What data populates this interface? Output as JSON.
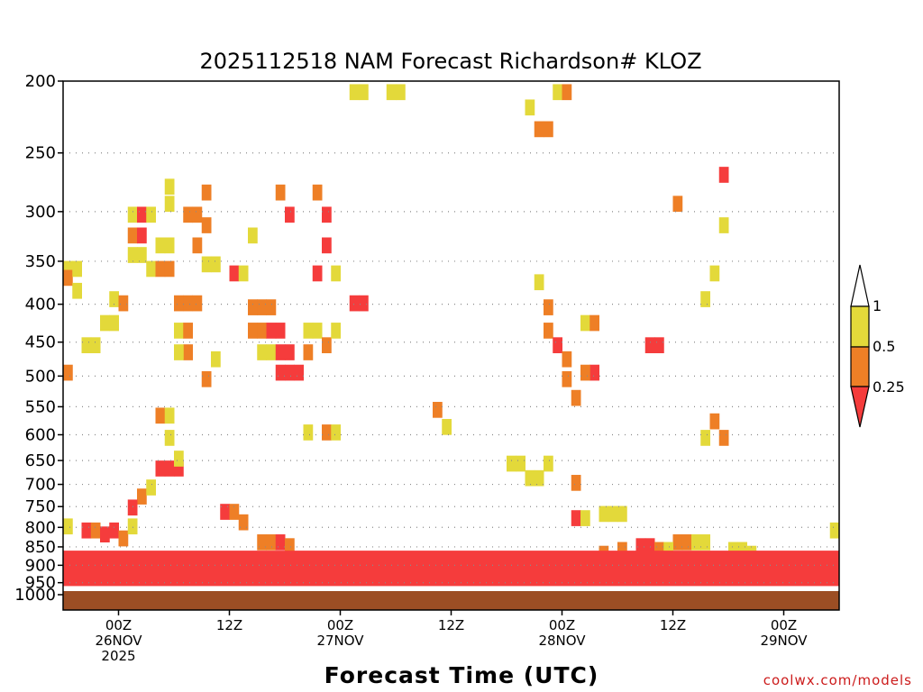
{
  "chart_data": {
    "type": "heatmap",
    "title": "2025112518 NAM Forecast Richardson# KLOZ",
    "xlabel": "Forecast Time (UTC)",
    "ylabel": "",
    "y_axis": {
      "unit": "hPa",
      "range": [
        1000,
        200
      ],
      "ticks": [
        200,
        250,
        300,
        350,
        400,
        450,
        500,
        550,
        600,
        650,
        700,
        750,
        800,
        850,
        900,
        950,
        1000
      ]
    },
    "x_axis": {
      "unit": "hours since 2025-11-25 18Z",
      "range": [
        0,
        84
      ],
      "ticks": [
        {
          "hour": 6,
          "lines": [
            "00Z",
            "26NOV",
            "2025"
          ]
        },
        {
          "hour": 18,
          "lines": [
            "12Z"
          ]
        },
        {
          "hour": 30,
          "lines": [
            "00Z",
            "27NOV"
          ]
        },
        {
          "hour": 42,
          "lines": [
            "12Z"
          ]
        },
        {
          "hour": 54,
          "lines": [
            "00Z",
            "28NOV"
          ]
        },
        {
          "hour": 66,
          "lines": [
            "12Z"
          ]
        },
        {
          "hour": 78,
          "lines": [
            "00Z",
            "29NOV"
          ]
        }
      ]
    },
    "gridlines": "horizontal dotted at pressure ticks",
    "legend": {
      "position": "right",
      "categories": [
        {
          "label": "1",
          "range": "> 1",
          "color": "#ffffff"
        },
        {
          "label": "0.5",
          "range": "0.5 – 1",
          "color": "#e3d93a"
        },
        {
          "label": "0.25",
          "range": "0.25 – 0.5",
          "color": "#ee7f26"
        },
        {
          "label": "",
          "range": "< 0.25",
          "color": "#f53c3c"
        }
      ]
    },
    "surface_color": "#9c4e24",
    "cells": [
      {
        "t": 0,
        "p": 355,
        "c": "yellow"
      },
      {
        "t": 0,
        "p": 365,
        "c": "orange"
      },
      {
        "t": 0,
        "p": 490,
        "c": "orange"
      },
      {
        "t": 1,
        "p": 355,
        "c": "yellow"
      },
      {
        "t": 1,
        "p": 380,
        "c": "yellow"
      },
      {
        "t": 2,
        "p": 450,
        "c": "yellow"
      },
      {
        "t": 3,
        "p": 450,
        "c": "yellow"
      },
      {
        "t": 4,
        "p": 420,
        "c": "yellow"
      },
      {
        "t": 5,
        "p": 420,
        "c": "yellow"
      },
      {
        "t": 5,
        "p": 390,
        "c": "yellow"
      },
      {
        "t": 6,
        "p": 395,
        "c": "orange"
      },
      {
        "t": 7,
        "p": 300,
        "c": "yellow"
      },
      {
        "t": 7,
        "p": 320,
        "c": "orange"
      },
      {
        "t": 8,
        "p": 300,
        "c": "red"
      },
      {
        "t": 8,
        "p": 320,
        "c": "red"
      },
      {
        "t": 7,
        "p": 340,
        "c": "yellow"
      },
      {
        "t": 8,
        "p": 340,
        "c": "yellow"
      },
      {
        "t": 9,
        "p": 300,
        "c": "yellow"
      },
      {
        "t": 9,
        "p": 355,
        "c": "yellow"
      },
      {
        "t": 10,
        "p": 355,
        "c": "orange"
      },
      {
        "t": 11,
        "p": 355,
        "c": "orange"
      },
      {
        "t": 10,
        "p": 330,
        "c": "yellow"
      },
      {
        "t": 11,
        "p": 330,
        "c": "yellow"
      },
      {
        "t": 11,
        "p": 275,
        "c": "yellow"
      },
      {
        "t": 11,
        "p": 290,
        "c": "yellow"
      },
      {
        "t": 12,
        "p": 395,
        "c": "orange"
      },
      {
        "t": 13,
        "p": 395,
        "c": "orange"
      },
      {
        "t": 14,
        "p": 395,
        "c": "orange"
      },
      {
        "t": 12,
        "p": 430,
        "c": "yellow"
      },
      {
        "t": 13,
        "p": 430,
        "c": "orange"
      },
      {
        "t": 13,
        "p": 460,
        "c": "orange"
      },
      {
        "t": 12,
        "p": 460,
        "c": "yellow"
      },
      {
        "t": 13,
        "p": 300,
        "c": "orange"
      },
      {
        "t": 14,
        "p": 300,
        "c": "orange"
      },
      {
        "t": 15,
        "p": 280,
        "c": "orange"
      },
      {
        "t": 15,
        "p": 310,
        "c": "orange"
      },
      {
        "t": 14,
        "p": 330,
        "c": "orange"
      },
      {
        "t": 15,
        "p": 350,
        "c": "yellow"
      },
      {
        "t": 16,
        "p": 350,
        "c": "yellow"
      },
      {
        "t": 16,
        "p": 470,
        "c": "yellow"
      },
      {
        "t": 15,
        "p": 500,
        "c": "orange"
      },
      {
        "t": 18,
        "p": 360,
        "c": "red"
      },
      {
        "t": 19,
        "p": 360,
        "c": "yellow"
      },
      {
        "t": 20,
        "p": 320,
        "c": "yellow"
      },
      {
        "t": 20,
        "p": 400,
        "c": "orange"
      },
      {
        "t": 21,
        "p": 400,
        "c": "orange"
      },
      {
        "t": 22,
        "p": 400,
        "c": "orange"
      },
      {
        "t": 20,
        "p": 430,
        "c": "orange"
      },
      {
        "t": 21,
        "p": 430,
        "c": "orange"
      },
      {
        "t": 22,
        "p": 430,
        "c": "red"
      },
      {
        "t": 23,
        "p": 430,
        "c": "red"
      },
      {
        "t": 21,
        "p": 460,
        "c": "yellow"
      },
      {
        "t": 22,
        "p": 460,
        "c": "yellow"
      },
      {
        "t": 23,
        "p": 460,
        "c": "red"
      },
      {
        "t": 24,
        "p": 460,
        "c": "red"
      },
      {
        "t": 23,
        "p": 490,
        "c": "red"
      },
      {
        "t": 24,
        "p": 490,
        "c": "red"
      },
      {
        "t": 25,
        "p": 490,
        "c": "red"
      },
      {
        "t": 26,
        "p": 430,
        "c": "yellow"
      },
      {
        "t": 26,
        "p": 460,
        "c": "orange"
      },
      {
        "t": 23,
        "p": 280,
        "c": "orange"
      },
      {
        "t": 24,
        "p": 300,
        "c": "red"
      },
      {
        "t": 27,
        "p": 280,
        "c": "orange"
      },
      {
        "t": 28,
        "p": 300,
        "c": "red"
      },
      {
        "t": 28,
        "p": 330,
        "c": "red"
      },
      {
        "t": 27,
        "p": 360,
        "c": "red"
      },
      {
        "t": 29,
        "p": 360,
        "c": "yellow"
      },
      {
        "t": 27,
        "p": 430,
        "c": "yellow"
      },
      {
        "t": 28,
        "p": 450,
        "c": "orange"
      },
      {
        "t": 29,
        "p": 430,
        "c": "yellow"
      },
      {
        "t": 31,
        "p": 395,
        "c": "red"
      },
      {
        "t": 32,
        "p": 395,
        "c": "red"
      },
      {
        "t": 31,
        "p": 205,
        "c": "yellow"
      },
      {
        "t": 32,
        "p": 205,
        "c": "yellow"
      },
      {
        "t": 35,
        "p": 205,
        "c": "yellow"
      },
      {
        "t": 36,
        "p": 205,
        "c": "yellow"
      },
      {
        "t": 50,
        "p": 215,
        "c": "yellow"
      },
      {
        "t": 51,
        "p": 230,
        "c": "orange"
      },
      {
        "t": 52,
        "p": 230,
        "c": "orange"
      },
      {
        "t": 53,
        "p": 205,
        "c": "yellow"
      },
      {
        "t": 54,
        "p": 205,
        "c": "orange"
      },
      {
        "t": 51,
        "p": 370,
        "c": "yellow"
      },
      {
        "t": 52,
        "p": 400,
        "c": "orange"
      },
      {
        "t": 52,
        "p": 430,
        "c": "orange"
      },
      {
        "t": 53,
        "p": 450,
        "c": "red"
      },
      {
        "t": 54,
        "p": 470,
        "c": "orange"
      },
      {
        "t": 54,
        "p": 500,
        "c": "orange"
      },
      {
        "t": 55,
        "p": 530,
        "c": "orange"
      },
      {
        "t": 56,
        "p": 420,
        "c": "yellow"
      },
      {
        "t": 57,
        "p": 420,
        "c": "orange"
      },
      {
        "t": 57,
        "p": 490,
        "c": "red"
      },
      {
        "t": 56,
        "p": 490,
        "c": "orange"
      },
      {
        "t": 63,
        "p": 450,
        "c": "red"
      },
      {
        "t": 64,
        "p": 450,
        "c": "red"
      },
      {
        "t": 66,
        "p": 290,
        "c": "orange"
      },
      {
        "t": 69,
        "p": 390,
        "c": "yellow"
      },
      {
        "t": 71,
        "p": 265,
        "c": "red"
      },
      {
        "t": 71,
        "p": 310,
        "c": "yellow"
      },
      {
        "t": 70,
        "p": 360,
        "c": "yellow"
      },
      {
        "t": 70,
        "p": 570,
        "c": "orange"
      },
      {
        "t": 69,
        "p": 600,
        "c": "yellow"
      },
      {
        "t": 71,
        "p": 600,
        "c": "orange"
      },
      {
        "t": 10,
        "p": 660,
        "c": "red"
      },
      {
        "t": 11,
        "p": 660,
        "c": "red"
      },
      {
        "t": 12,
        "p": 660,
        "c": "red"
      },
      {
        "t": 12,
        "p": 640,
        "c": "yellow"
      },
      {
        "t": 10,
        "p": 560,
        "c": "orange"
      },
      {
        "t": 11,
        "p": 560,
        "c": "yellow"
      },
      {
        "t": 11,
        "p": 600,
        "c": "yellow"
      },
      {
        "t": 8,
        "p": 720,
        "c": "orange"
      },
      {
        "t": 9,
        "p": 700,
        "c": "yellow"
      },
      {
        "t": 7,
        "p": 745,
        "c": "red"
      },
      {
        "t": 17,
        "p": 755,
        "c": "red"
      },
      {
        "t": 18,
        "p": 755,
        "c": "orange"
      },
      {
        "t": 19,
        "p": 780,
        "c": "orange"
      },
      {
        "t": 26,
        "p": 590,
        "c": "yellow"
      },
      {
        "t": 28,
        "p": 590,
        "c": "orange"
      },
      {
        "t": 29,
        "p": 590,
        "c": "yellow"
      },
      {
        "t": 40,
        "p": 550,
        "c": "orange"
      },
      {
        "t": 41,
        "p": 580,
        "c": "yellow"
      },
      {
        "t": 48,
        "p": 650,
        "c": "yellow"
      },
      {
        "t": 49,
        "p": 650,
        "c": "yellow"
      },
      {
        "t": 50,
        "p": 680,
        "c": "yellow"
      },
      {
        "t": 51,
        "p": 680,
        "c": "yellow"
      },
      {
        "t": 52,
        "p": 650,
        "c": "yellow"
      },
      {
        "t": 55,
        "p": 690,
        "c": "orange"
      },
      {
        "t": 55,
        "p": 770,
        "c": "red"
      },
      {
        "t": 56,
        "p": 770,
        "c": "yellow"
      },
      {
        "t": 58,
        "p": 760,
        "c": "yellow"
      },
      {
        "t": 59,
        "p": 760,
        "c": "yellow"
      },
      {
        "t": 60,
        "p": 760,
        "c": "yellow"
      },
      {
        "t": 0,
        "p": 790,
        "c": "yellow"
      },
      {
        "t": 2,
        "p": 800,
        "c": "red"
      },
      {
        "t": 3,
        "p": 800,
        "c": "orange"
      },
      {
        "t": 4,
        "p": 810,
        "c": "red"
      },
      {
        "t": 5,
        "p": 800,
        "c": "red"
      },
      {
        "t": 6,
        "p": 820,
        "c": "orange"
      },
      {
        "t": 7,
        "p": 790,
        "c": "yellow"
      },
      {
        "t": 21,
        "p": 830,
        "c": "orange"
      },
      {
        "t": 22,
        "p": 830,
        "c": "orange"
      },
      {
        "t": 23,
        "p": 830,
        "c": "red"
      },
      {
        "t": 24,
        "p": 840,
        "c": "orange"
      },
      {
        "t": 66,
        "p": 830,
        "c": "orange"
      },
      {
        "t": 67,
        "p": 830,
        "c": "orange"
      },
      {
        "t": 68,
        "p": 830,
        "c": "yellow"
      },
      {
        "t": 69,
        "p": 830,
        "c": "yellow"
      },
      {
        "t": 58,
        "p": 860,
        "c": "orange"
      },
      {
        "t": 60,
        "p": 850,
        "c": "orange"
      },
      {
        "t": 62,
        "p": 840,
        "c": "red"
      },
      {
        "t": 63,
        "p": 840,
        "c": "red"
      },
      {
        "t": 64,
        "p": 850,
        "c": "orange"
      },
      {
        "t": 65,
        "p": 850,
        "c": "yellow"
      },
      {
        "t": 72,
        "p": 850,
        "c": "yellow"
      },
      {
        "t": 73,
        "p": 850,
        "c": "yellow"
      },
      {
        "t": 74,
        "p": 860,
        "c": "yellow"
      },
      {
        "t": 83,
        "p": 800,
        "c": "yellow"
      }
    ],
    "bands": [
      {
        "name": "near-surface low-Ri layer",
        "color": "red",
        "layers": [
          {
            "p_top": 860,
            "p_bottom": 960,
            "t_start": 0,
            "t_end": 84
          }
        ]
      }
    ]
  },
  "credit": "coolwx.com/models"
}
